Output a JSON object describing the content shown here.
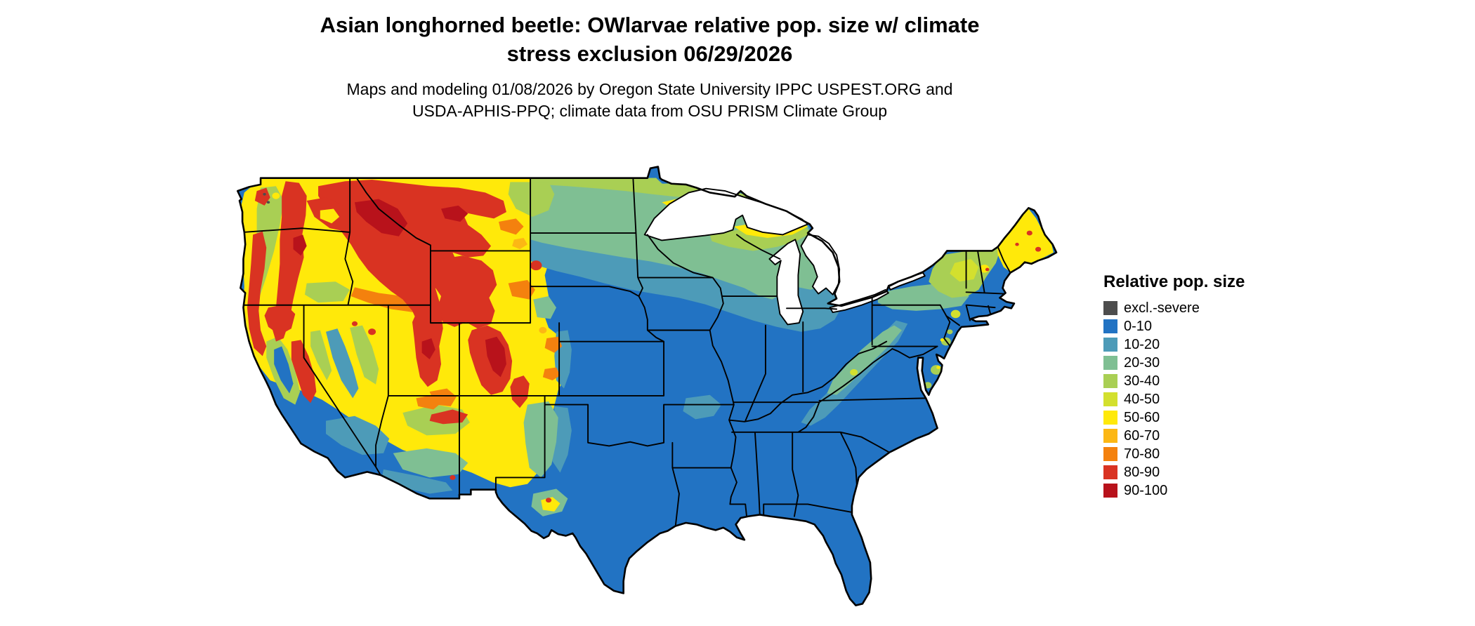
{
  "title": {
    "line1": "Asian longhorned beetle: OWlarvae relative pop. size w/ climate",
    "line2": "stress exclusion 06/29/2026"
  },
  "subtitle": {
    "line1": "Maps and modeling 01/08/2026 by Oregon State University IPPC USPEST.ORG and",
    "line2": "USDA-APHIS-PPQ; climate data from OSU PRISM Climate Group"
  },
  "legend": {
    "title": "Relative pop. size",
    "items": [
      {
        "label": "excl.-severe",
        "color": "#4d4d4d"
      },
      {
        "label": "0-10",
        "color": "#2273c3"
      },
      {
        "label": "10-20",
        "color": "#4d9bb8"
      },
      {
        "label": "20-30",
        "color": "#7fbf93"
      },
      {
        "label": "30-40",
        "color": "#a9cf54"
      },
      {
        "label": "40-50",
        "color": "#d3e02e"
      },
      {
        "label": "50-60",
        "color": "#ffe90a"
      },
      {
        "label": "60-70",
        "color": "#fcb714"
      },
      {
        "label": "70-80",
        "color": "#f4810e"
      },
      {
        "label": "80-90",
        "color": "#d93322"
      },
      {
        "label": "90-100",
        "color": "#b8121b"
      }
    ]
  },
  "chart_data": {
    "type": "heatmap",
    "subtype": "choropleth-raster-map",
    "region": "Contiguous United States",
    "title": "Asian longhorned beetle: OWlarvae relative pop. size w/ climate stress exclusion 06/29/2026",
    "legend_title": "Relative pop. size",
    "classes": [
      "excl.-severe",
      "0-10",
      "10-20",
      "20-30",
      "30-40",
      "40-50",
      "50-60",
      "60-70",
      "70-80",
      "80-90",
      "90-100"
    ],
    "pattern_summary": {
      "0-10_blue": "Most of central, southern and eastern US lowlands (Texas, Gulf states, Florida, Midwest corn belt, mid-Atlantic, southern plains)",
      "10-30_teal_green": "Upper Midwest, Great Lakes fringe, Appalachian ridge, desert Southwest valleys",
      "30-60_green_yellow": "Northern plains, northern Minnesota/Wisconsin/Michigan, New England, Maine, intermountain West basins, California Central Valley margins",
      "60-100_orange_red": "Cascades, northern Rockies, Idaho, western Montana hi-line, Wyoming, Utah Wasatch, Colorado Rockies, Sierra Nevada, scattered peaks in NM/AZ and New England"
    }
  }
}
